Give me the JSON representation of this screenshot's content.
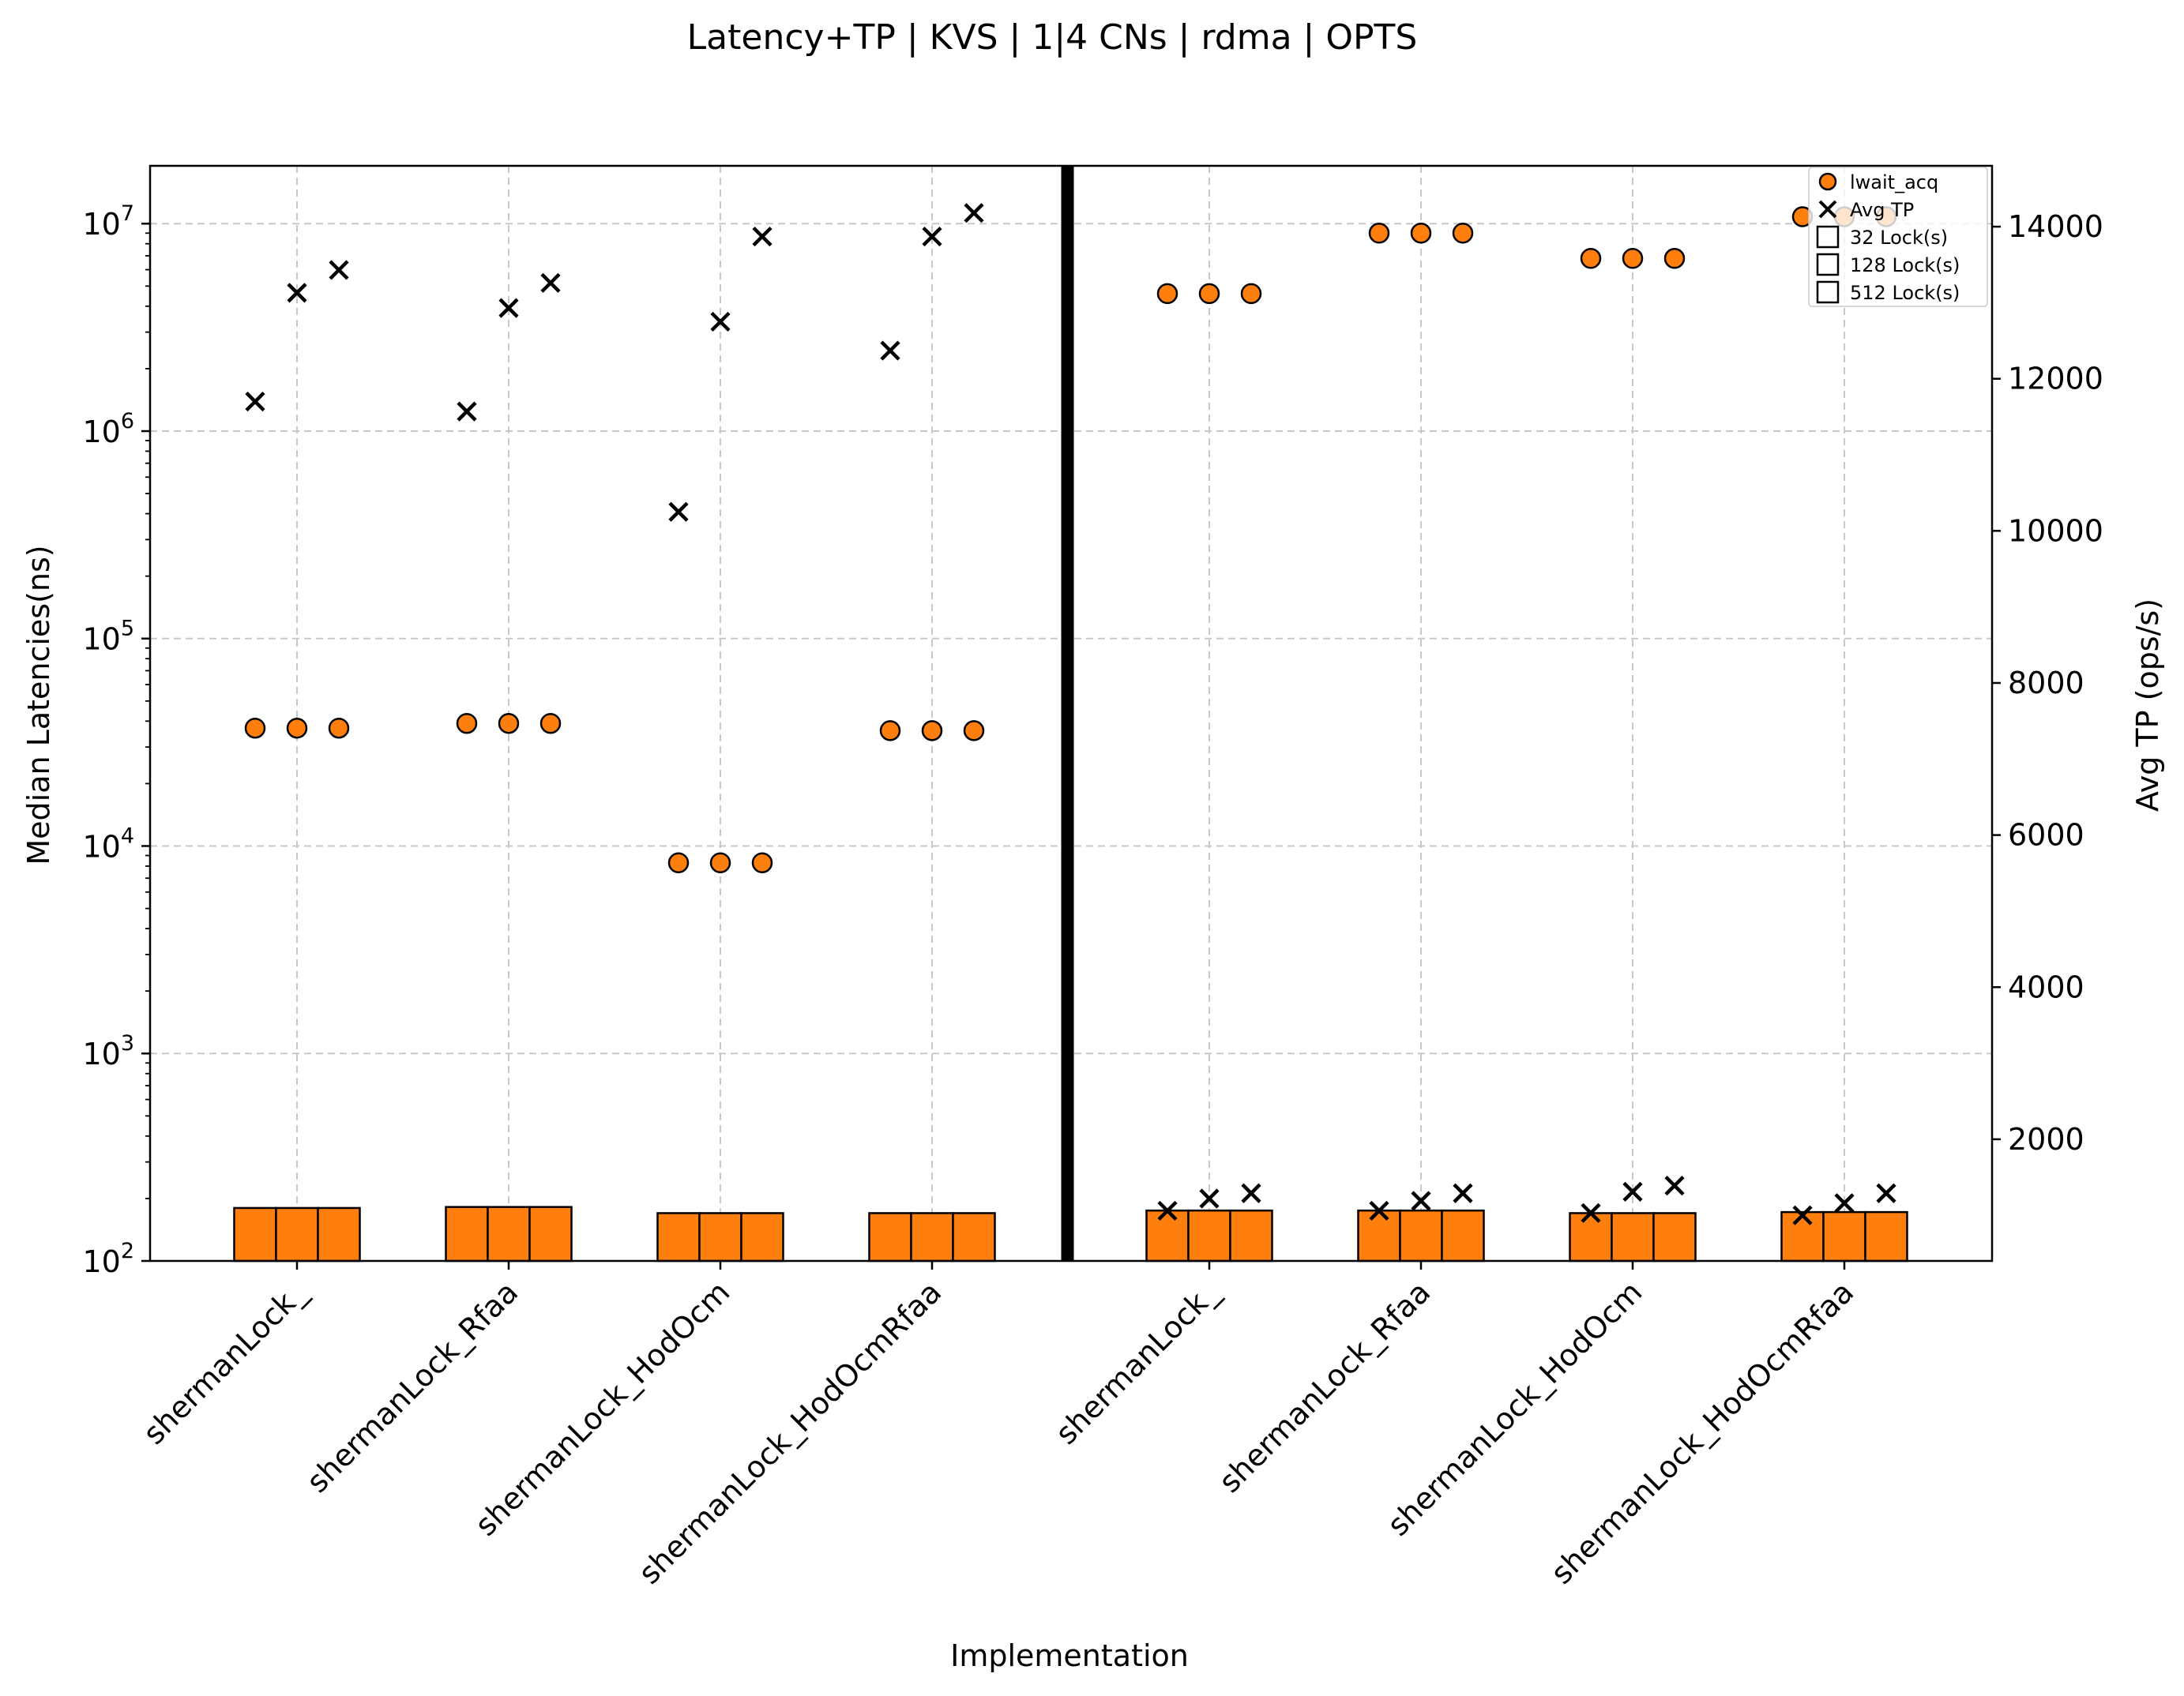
{
  "chart_data": {
    "type": "scatter",
    "title": "Latency+TP | KVS | 1|4 CNs | rdma | OPTS",
    "xlabel": "Implementation",
    "ylabel": "Median Latencies(ns)",
    "y2label": "Avg TP (ops/s)",
    "yscale": "log",
    "ylim": [
      100,
      19000000
    ],
    "y_ticks": [
      {
        "value": 100,
        "base": "10",
        "exp": "2"
      },
      {
        "value": 1000,
        "base": "10",
        "exp": "3"
      },
      {
        "value": 10000,
        "base": "10",
        "exp": "4"
      },
      {
        "value": 100000,
        "base": "10",
        "exp": "5"
      },
      {
        "value": 1000000,
        "base": "10",
        "exp": "6"
      },
      {
        "value": 10000000,
        "base": "10",
        "exp": "7"
      }
    ],
    "y2lim": [
      400,
      14800
    ],
    "y2_ticks": [
      "2000",
      "4000",
      "6000",
      "8000",
      "10000",
      "12000",
      "14000"
    ],
    "grid": true,
    "legend_position": "top-right",
    "legend": [
      "lwait_acq",
      "Avg TP",
      "32 Lock(s)",
      "128 Lock(s)",
      "512 Lock(s)"
    ],
    "lock_counts": [
      "32 Lock(s)",
      "128 Lock(s)",
      "512 Lock(s)"
    ],
    "divider_after_group": 4,
    "colors": {
      "marker": "#ff7f0e",
      "bar": "#ff7f0e",
      "edge": "#000000",
      "grid": "#c8c8c8",
      "divider": "#000000"
    },
    "groups": [
      {
        "label": "shermanLock_",
        "panel": "1 CN",
        "lwait_acq": [
          37000,
          37000,
          37000
        ],
        "bar_lat": [
          180,
          180,
          180
        ],
        "avg_tp": [
          11700,
          13130,
          13430
        ]
      },
      {
        "label": "shermanLock_Rfaa",
        "panel": "1 CN",
        "lwait_acq": [
          39000,
          39000,
          39000
        ],
        "bar_lat": [
          182,
          182,
          182
        ],
        "avg_tp": [
          11570,
          12930,
          13260
        ]
      },
      {
        "label": "shermanLock_HodOcm",
        "panel": "1 CN",
        "lwait_acq": [
          8300,
          8300,
          8300
        ],
        "bar_lat": [
          170,
          170,
          170
        ],
        "avg_tp": [
          10250,
          12750,
          13870
        ]
      },
      {
        "label": "shermanLock_HodOcmRfaa",
        "panel": "1 CN",
        "lwait_acq": [
          36000,
          36000,
          36000
        ],
        "bar_lat": [
          170,
          170,
          170
        ],
        "avg_tp": [
          12370,
          13870,
          14180
        ]
      },
      {
        "label": "shermanLock_",
        "panel": "4 CNs",
        "lwait_acq": [
          4600000,
          4600000,
          4600000
        ],
        "bar_lat": [
          175,
          175,
          175
        ],
        "avg_tp": [
          1060,
          1220,
          1290
        ]
      },
      {
        "label": "shermanLock_Rfaa",
        "panel": "4 CNs",
        "lwait_acq": [
          9000000,
          9000000,
          9000000
        ],
        "bar_lat": [
          175,
          175,
          175
        ],
        "avg_tp": [
          1060,
          1190,
          1290
        ]
      },
      {
        "label": "shermanLock_HodOcm",
        "panel": "4 CNs",
        "lwait_acq": [
          6800000,
          6800000,
          6800000
        ],
        "bar_lat": [
          170,
          170,
          170
        ],
        "avg_tp": [
          1030,
          1310,
          1390
        ]
      },
      {
        "label": "shermanLock_HodOcmRfaa",
        "panel": "4 CNs",
        "lwait_acq": [
          10800000,
          10800000,
          10800000
        ],
        "bar_lat": [
          172,
          172,
          172
        ],
        "avg_tp": [
          1000,
          1160,
          1290
        ]
      }
    ]
  }
}
